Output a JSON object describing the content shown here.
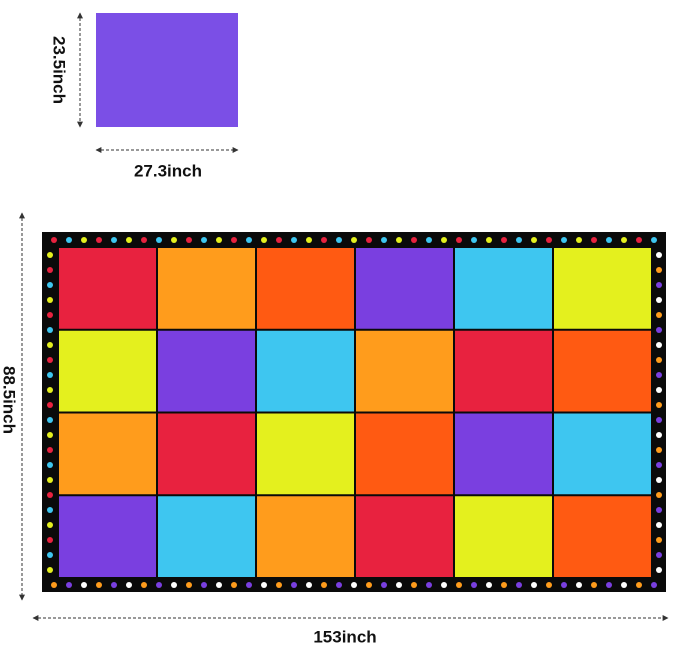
{
  "small_tile": {
    "height_label": "23.5inch",
    "width_label": "27.3inch"
  },
  "mat": {
    "height_label": "88.5inch",
    "width_label": "153inch"
  }
}
